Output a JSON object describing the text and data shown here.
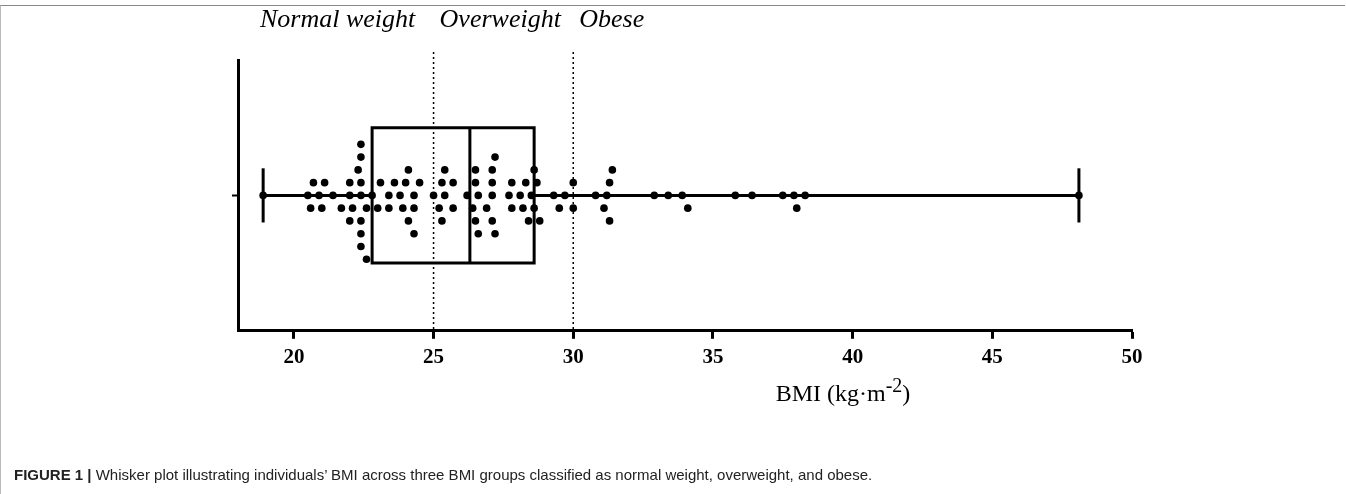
{
  "chart_data": {
    "type": "box",
    "orientation": "horizontal",
    "categories": [
      null
    ],
    "xlabel": "BMI (kg·m$^{-2}$)",
    "xlim": [
      18,
      50
    ],
    "xticks": [
      20,
      25,
      30,
      35,
      40,
      45,
      50
    ],
    "tick_labels": "x",
    "grid": false,
    "legend": false,
    "series": [
      {
        "color": "#000000",
        "boxes": [
          {
            "low": 18.9,
            "q1": 22.8,
            "median": 26.3,
            "q3": 28.6,
            "high": 48.1
          }
        ]
      },
      {
        "type": "scatter",
        "color": "#000000",
        "marker": "circle",
        "x": [
          null,
          null,
          null,
          null,
          null,
          null,
          null,
          null,
          null,
          null,
          null,
          null,
          null,
          null,
          null,
          null,
          null,
          null,
          null,
          null,
          null,
          null,
          null,
          null,
          null,
          null,
          null,
          null,
          null,
          null,
          null,
          null,
          null,
          null,
          null,
          null,
          null,
          null,
          null,
          null,
          null,
          null,
          null,
          null,
          null,
          null,
          null,
          null,
          null,
          null,
          null,
          null,
          null,
          null,
          null,
          null,
          null,
          null,
          null,
          null,
          null,
          null,
          null,
          null,
          null,
          null,
          null,
          null,
          null,
          null,
          null,
          null,
          null,
          null,
          null,
          null,
          null,
          null,
          null,
          null,
          null,
          null,
          null,
          null,
          null,
          null,
          null,
          null,
          null,
          null,
          null,
          null,
          null,
          null
        ],
        "values": [
          18.9,
          20.5,
          20.9,
          20.7,
          21.1,
          20.6,
          21.0,
          21.4,
          21.7,
          22.0,
          22.4,
          22.6,
          22.0,
          22.4,
          22.1,
          22.4,
          22.0,
          22.4,
          22.3,
          22.6,
          22.4,
          22.4,
          22.4,
          23.0,
          22.8,
          23.1,
          23.4,
          23.8,
          24.1,
          23.4,
          23.6,
          23.9,
          24.3,
          24.0,
          24.3,
          24.3,
          24.5,
          24.1,
          25.0,
          25.4,
          25.7,
          25.3,
          25.4,
          25.3,
          25.7,
          26.2,
          25.2,
          26.4,
          26.6,
          27.1,
          26.6,
          27.1,
          26.5,
          26.9,
          27.2,
          26.5,
          27.1,
          26.5,
          27.2,
          27.1,
          27.7,
          28.1,
          28.4,
          27.8,
          27.8,
          28.2,
          28.3,
          28.5,
          28.7,
          28.8,
          28.6,
          28.6,
          29.3,
          29.7,
          30.0,
          29.5,
          30.0,
          30.8,
          31.1,
          31.4,
          31.2,
          31.3,
          31.3,
          32.9,
          33.4,
          34.1,
          33.9,
          35.8,
          36.4,
          37.5,
          37.9,
          38.0,
          38.3,
          48.1
        ]
      }
    ],
    "ref_lines": [
      {
        "axis": "x",
        "value": 25,
        "line_style": "dotted"
      },
      {
        "axis": "x",
        "value": 30,
        "line_style": "dotted"
      }
    ],
    "annotations": [
      "Normal weight",
      "Overweight",
      "Obese",
      "FIGURE 1 | Whisker plot illustrating individuals’ BMI across three BMI groups classified as normal weight, overweight, and obese."
    ]
  }
}
